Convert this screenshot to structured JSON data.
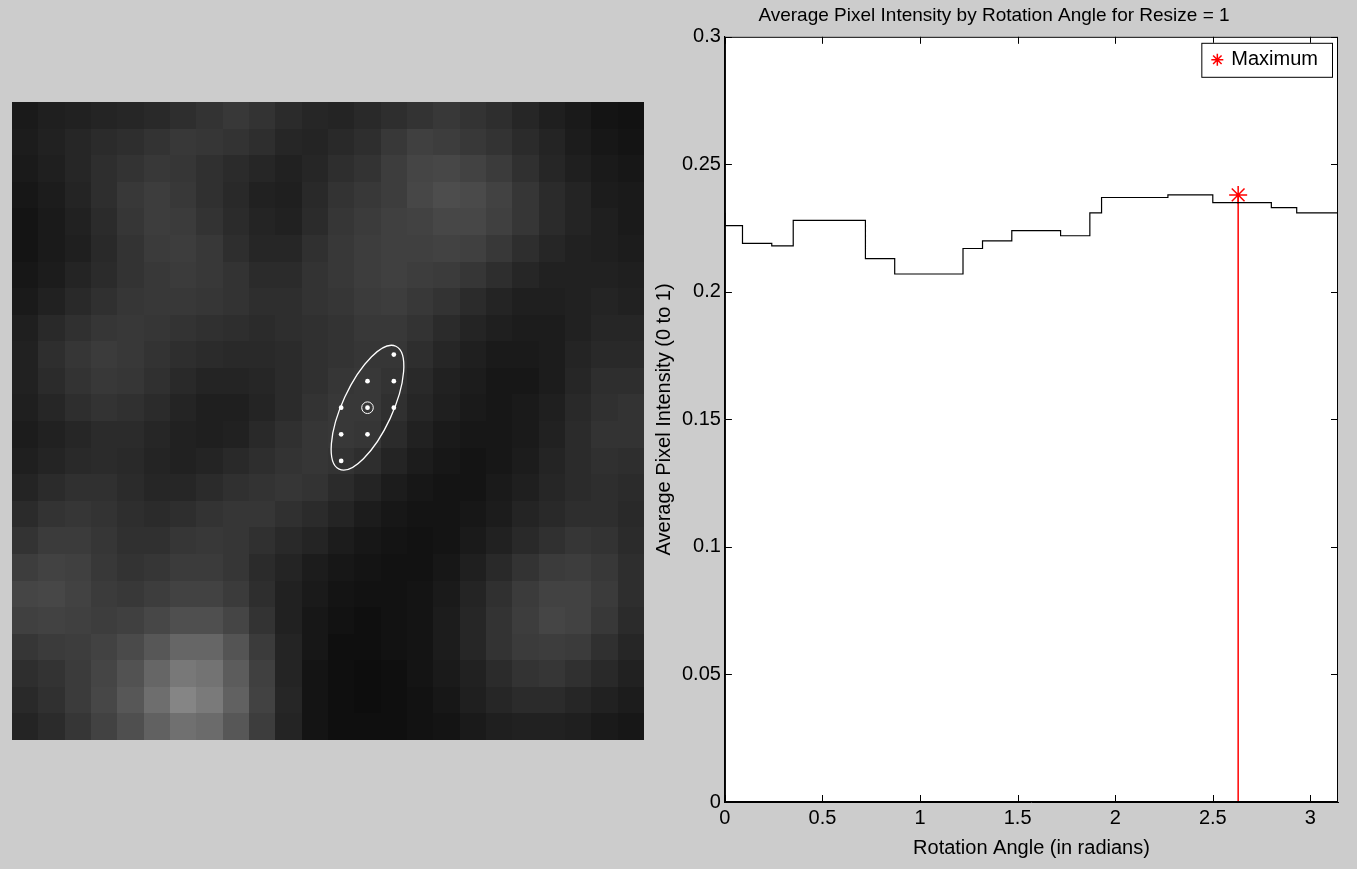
{
  "chart_data": [
    {
      "type": "image",
      "tick_labels": false,
      "zlim": [
        0,
        1
      ],
      "center": [
        13,
        11
      ],
      "points": [
        [
          14,
          9
        ],
        [
          13,
          10
        ],
        [
          14,
          10
        ],
        [
          12,
          11
        ],
        [
          13,
          11
        ],
        [
          14,
          11
        ],
        [
          12,
          12
        ],
        [
          13,
          12
        ],
        [
          12,
          13
        ]
      ],
      "cells": [
        [
          0.1,
          0.12,
          0.13,
          0.14,
          0.15,
          0.16,
          0.18,
          0.2,
          0.22,
          0.2,
          0.17,
          0.15,
          0.14,
          0.16,
          0.18,
          0.2,
          0.22,
          0.2,
          0.18,
          0.15,
          0.12,
          0.1,
          0.08,
          0.07
        ],
        [
          0.11,
          0.13,
          0.15,
          0.17,
          0.18,
          0.2,
          0.22,
          0.21,
          0.2,
          0.18,
          0.15,
          0.14,
          0.16,
          0.18,
          0.22,
          0.25,
          0.24,
          0.22,
          0.2,
          0.17,
          0.14,
          0.11,
          0.09,
          0.08
        ],
        [
          0.1,
          0.12,
          0.15,
          0.18,
          0.2,
          0.22,
          0.21,
          0.19,
          0.17,
          0.15,
          0.13,
          0.15,
          0.18,
          0.2,
          0.24,
          0.27,
          0.28,
          0.26,
          0.23,
          0.19,
          0.15,
          0.12,
          0.1,
          0.09
        ],
        [
          0.09,
          0.11,
          0.14,
          0.18,
          0.22,
          0.24,
          0.22,
          0.19,
          0.16,
          0.13,
          0.12,
          0.16,
          0.2,
          0.22,
          0.24,
          0.28,
          0.3,
          0.29,
          0.26,
          0.21,
          0.17,
          0.14,
          0.11,
          0.1
        ],
        [
          0.08,
          0.1,
          0.13,
          0.17,
          0.21,
          0.24,
          0.23,
          0.2,
          0.17,
          0.14,
          0.13,
          0.17,
          0.21,
          0.23,
          0.25,
          0.26,
          0.28,
          0.28,
          0.25,
          0.21,
          0.17,
          0.14,
          0.12,
          0.1
        ],
        [
          0.08,
          0.1,
          0.12,
          0.16,
          0.2,
          0.23,
          0.24,
          0.22,
          0.18,
          0.15,
          0.15,
          0.19,
          0.22,
          0.24,
          0.25,
          0.25,
          0.26,
          0.25,
          0.22,
          0.18,
          0.15,
          0.13,
          0.12,
          0.11
        ],
        [
          0.09,
          0.11,
          0.14,
          0.17,
          0.2,
          0.22,
          0.23,
          0.22,
          0.2,
          0.17,
          0.17,
          0.2,
          0.22,
          0.24,
          0.25,
          0.24,
          0.23,
          0.21,
          0.18,
          0.15,
          0.13,
          0.13,
          0.13,
          0.12
        ],
        [
          0.1,
          0.13,
          0.16,
          0.19,
          0.21,
          0.22,
          0.22,
          0.21,
          0.2,
          0.18,
          0.18,
          0.2,
          0.21,
          0.23,
          0.24,
          0.22,
          0.2,
          0.17,
          0.14,
          0.12,
          0.12,
          0.13,
          0.14,
          0.13
        ],
        [
          0.12,
          0.16,
          0.19,
          0.21,
          0.22,
          0.21,
          0.2,
          0.19,
          0.18,
          0.17,
          0.18,
          0.19,
          0.2,
          0.22,
          0.22,
          0.2,
          0.17,
          0.14,
          0.12,
          0.11,
          0.11,
          0.13,
          0.15,
          0.15
        ],
        [
          0.13,
          0.18,
          0.21,
          0.23,
          0.22,
          0.2,
          0.18,
          0.17,
          0.16,
          0.16,
          0.17,
          0.19,
          0.2,
          0.21,
          0.21,
          0.18,
          0.15,
          0.12,
          0.1,
          0.1,
          0.11,
          0.14,
          0.16,
          0.16
        ],
        [
          0.13,
          0.17,
          0.2,
          0.22,
          0.21,
          0.19,
          0.16,
          0.14,
          0.14,
          0.15,
          0.17,
          0.19,
          0.21,
          0.22,
          0.2,
          0.16,
          0.13,
          0.11,
          0.09,
          0.09,
          0.11,
          0.15,
          0.18,
          0.18
        ],
        [
          0.12,
          0.15,
          0.18,
          0.2,
          0.19,
          0.17,
          0.14,
          0.12,
          0.12,
          0.14,
          0.17,
          0.2,
          0.22,
          0.22,
          0.19,
          0.15,
          0.12,
          0.1,
          0.09,
          0.1,
          0.12,
          0.16,
          0.19,
          0.2
        ],
        [
          0.11,
          0.13,
          0.15,
          0.17,
          0.17,
          0.15,
          0.13,
          0.12,
          0.13,
          0.16,
          0.19,
          0.21,
          0.22,
          0.21,
          0.17,
          0.13,
          0.1,
          0.09,
          0.09,
          0.1,
          0.13,
          0.17,
          0.2,
          0.2
        ],
        [
          0.12,
          0.14,
          0.16,
          0.17,
          0.16,
          0.14,
          0.13,
          0.14,
          0.16,
          0.18,
          0.2,
          0.21,
          0.2,
          0.18,
          0.14,
          0.11,
          0.09,
          0.08,
          0.09,
          0.11,
          0.14,
          0.17,
          0.19,
          0.18
        ],
        [
          0.14,
          0.17,
          0.19,
          0.19,
          0.17,
          0.15,
          0.15,
          0.17,
          0.19,
          0.2,
          0.21,
          0.2,
          0.17,
          0.14,
          0.11,
          0.09,
          0.08,
          0.08,
          0.1,
          0.12,
          0.15,
          0.17,
          0.18,
          0.17
        ],
        [
          0.17,
          0.2,
          0.21,
          0.2,
          0.18,
          0.17,
          0.18,
          0.2,
          0.21,
          0.21,
          0.19,
          0.17,
          0.14,
          0.11,
          0.09,
          0.08,
          0.08,
          0.09,
          0.11,
          0.14,
          0.16,
          0.18,
          0.18,
          0.16
        ],
        [
          0.2,
          0.23,
          0.23,
          0.21,
          0.19,
          0.19,
          0.21,
          0.22,
          0.21,
          0.19,
          0.16,
          0.14,
          0.11,
          0.09,
          0.08,
          0.07,
          0.08,
          0.1,
          0.13,
          0.16,
          0.19,
          0.21,
          0.2,
          0.17
        ],
        [
          0.24,
          0.26,
          0.25,
          0.22,
          0.2,
          0.21,
          0.23,
          0.23,
          0.21,
          0.17,
          0.14,
          0.11,
          0.09,
          0.08,
          0.07,
          0.07,
          0.09,
          0.12,
          0.16,
          0.2,
          0.23,
          0.24,
          0.22,
          0.18
        ],
        [
          0.27,
          0.28,
          0.26,
          0.23,
          0.22,
          0.24,
          0.26,
          0.26,
          0.23,
          0.18,
          0.13,
          0.1,
          0.08,
          0.07,
          0.07,
          0.08,
          0.1,
          0.14,
          0.19,
          0.23,
          0.26,
          0.26,
          0.23,
          0.18
        ],
        [
          0.25,
          0.26,
          0.25,
          0.24,
          0.25,
          0.28,
          0.31,
          0.31,
          0.27,
          0.2,
          0.13,
          0.09,
          0.07,
          0.06,
          0.07,
          0.08,
          0.11,
          0.15,
          0.2,
          0.24,
          0.27,
          0.26,
          0.22,
          0.17
        ],
        [
          0.21,
          0.23,
          0.24,
          0.26,
          0.29,
          0.34,
          0.4,
          0.4,
          0.33,
          0.23,
          0.14,
          0.09,
          0.06,
          0.06,
          0.07,
          0.08,
          0.11,
          0.15,
          0.2,
          0.23,
          0.24,
          0.23,
          0.19,
          0.15
        ],
        [
          0.18,
          0.2,
          0.23,
          0.27,
          0.32,
          0.4,
          0.47,
          0.45,
          0.36,
          0.25,
          0.14,
          0.08,
          0.06,
          0.05,
          0.06,
          0.08,
          0.1,
          0.13,
          0.17,
          0.2,
          0.21,
          0.19,
          0.16,
          0.13
        ],
        [
          0.16,
          0.19,
          0.23,
          0.28,
          0.34,
          0.43,
          0.52,
          0.48,
          0.38,
          0.26,
          0.15,
          0.08,
          0.06,
          0.05,
          0.06,
          0.07,
          0.09,
          0.12,
          0.15,
          0.17,
          0.17,
          0.15,
          0.13,
          0.11
        ],
        [
          0.14,
          0.17,
          0.21,
          0.26,
          0.31,
          0.38,
          0.44,
          0.42,
          0.34,
          0.24,
          0.14,
          0.08,
          0.06,
          0.06,
          0.06,
          0.07,
          0.08,
          0.1,
          0.12,
          0.13,
          0.13,
          0.12,
          0.1,
          0.09
        ]
      ]
    },
    {
      "type": "line",
      "title": "Average Pixel Intensity by Rotation Angle for Resize = 1",
      "x_label": "Rotation Angle (in radians)",
      "y_label": "Average Pixel Intensity (0 to 1)",
      "x": [
        0,
        0.09,
        0.24,
        0.35,
        0.72,
        0.87,
        1.22,
        1.32,
        1.47,
        1.72,
        1.87,
        1.93,
        2.27,
        2.5,
        2.8,
        2.93,
        3.08,
        3.1416
      ],
      "series": [
        {
          "values": [
            0.231,
            0.226,
            0.219,
            0.218,
            0.228,
            0.213,
            0.207,
            0.217,
            0.22,
            0.224,
            0.222,
            0.231,
            0.237,
            0.238,
            0.235,
            0.233,
            0.231,
            0.231
          ],
          "color": "#000000",
          "line_style": "steps"
        },
        {
          "name": "Maximum",
          "x": [
            2.63
          ],
          "values": [
            0.238
          ],
          "color": "#ff0000",
          "marker": "star",
          "line_style": "stem"
        }
      ],
      "xlim": [
        0,
        3.1416
      ],
      "xticks": [
        0,
        0.5,
        1,
        1.5,
        2,
        2.5,
        3
      ],
      "ylim": [
        0,
        0.3
      ],
      "yticks": [
        0,
        0.05,
        0.1,
        0.15,
        0.2,
        0.25,
        0.3
      ],
      "grid": false,
      "legend": "upper right"
    }
  ]
}
